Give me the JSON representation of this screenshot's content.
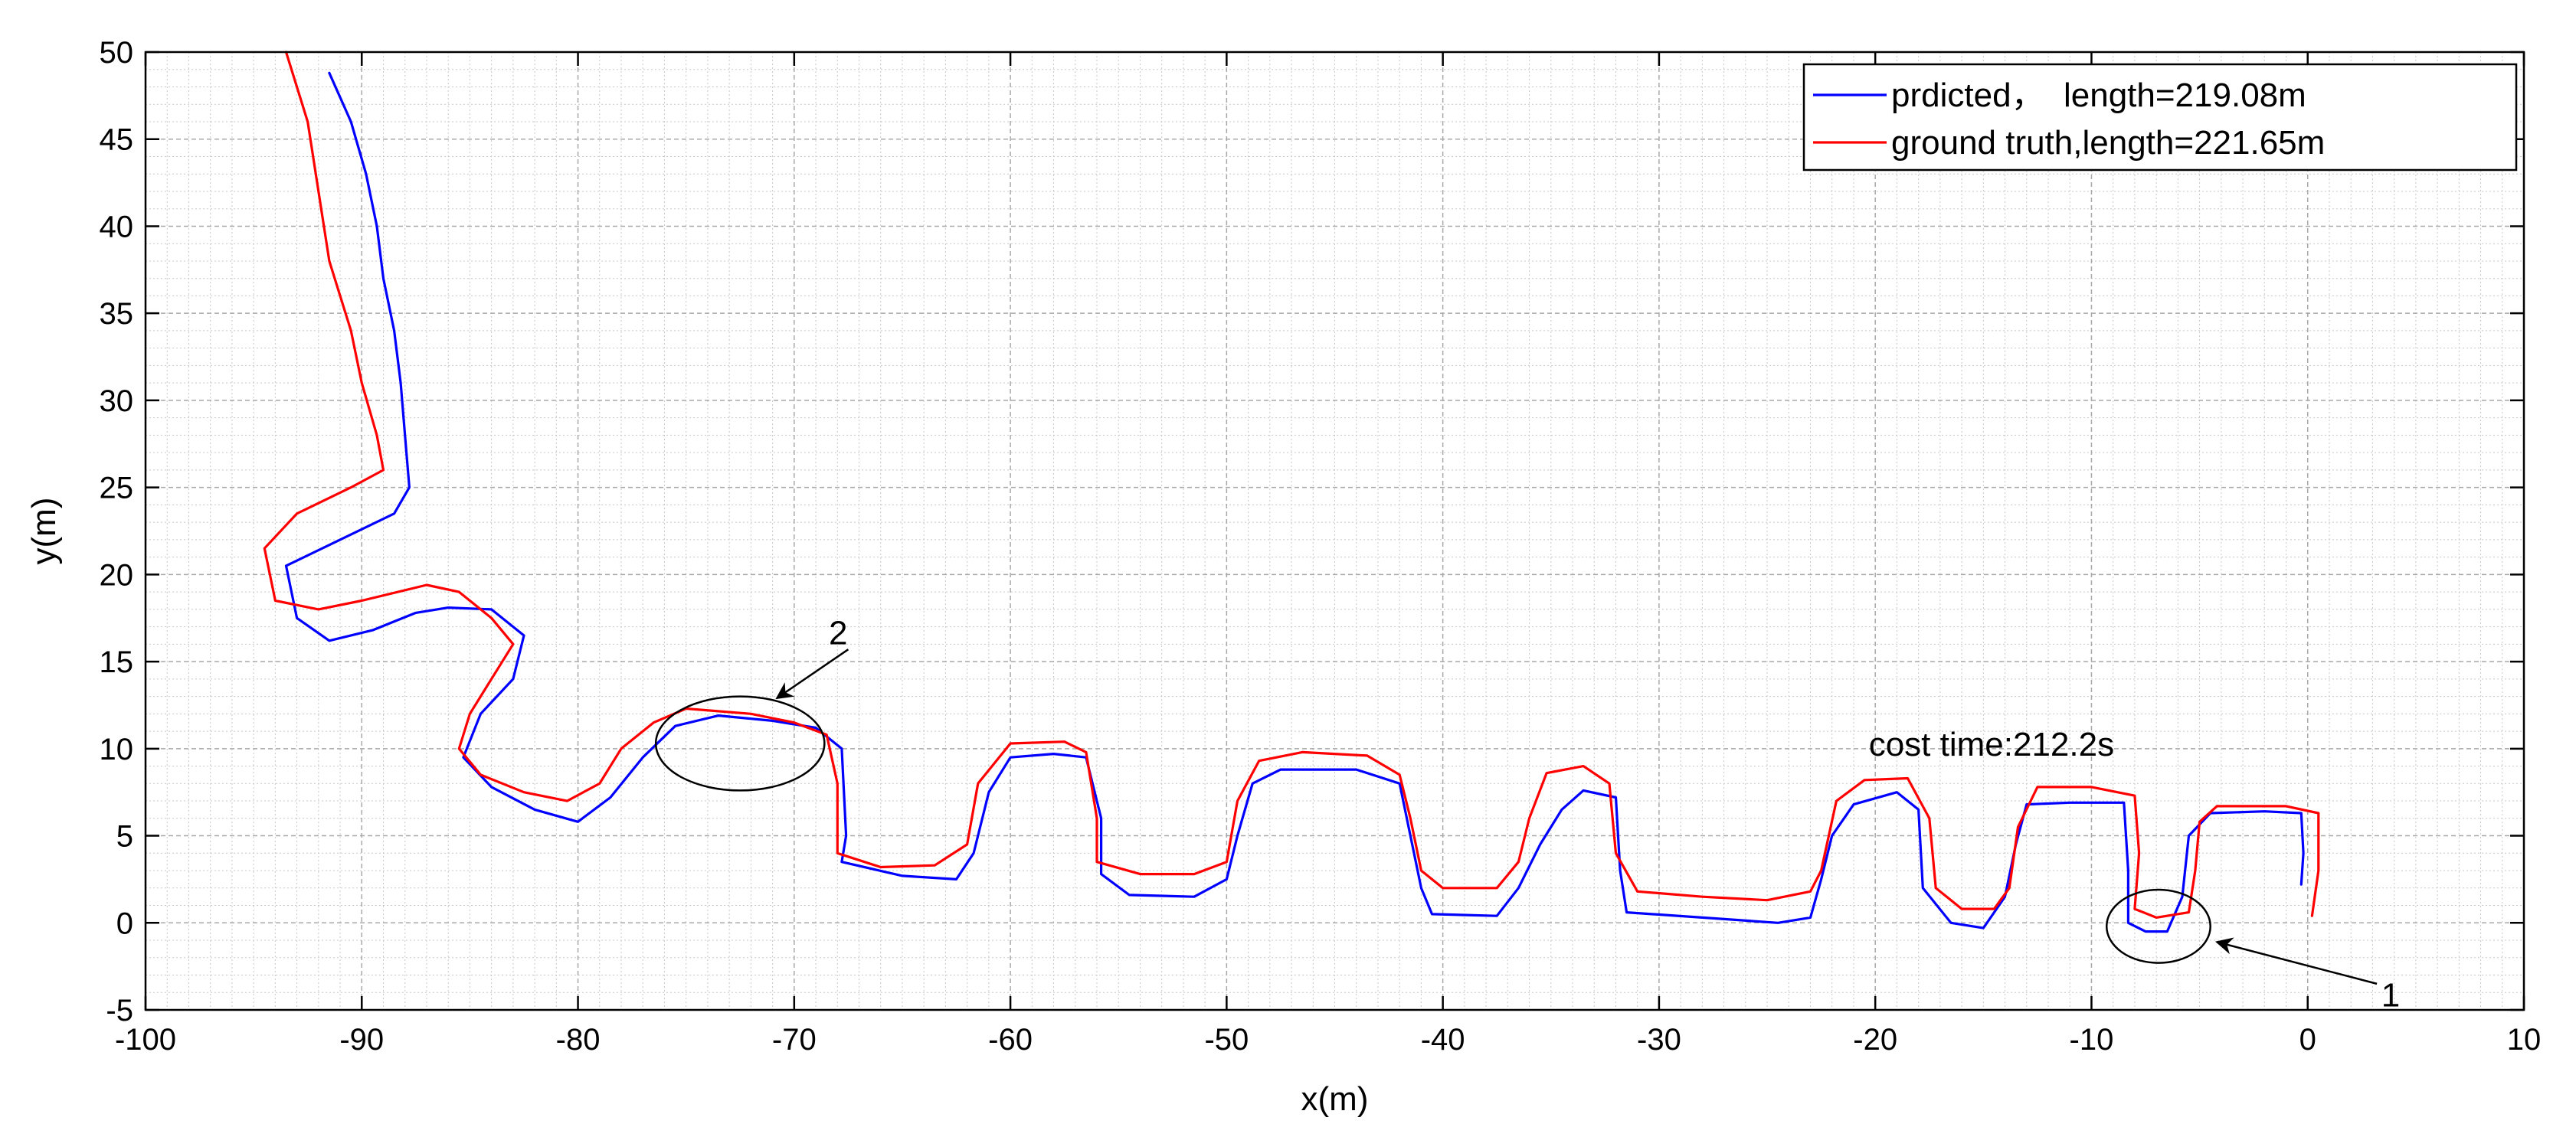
{
  "chart_data": {
    "type": "line",
    "xlabel": "x(m)",
    "ylabel": "y(m)",
    "xlim": [
      -100,
      10
    ],
    "ylim": [
      -5,
      50
    ],
    "xticks": [
      -100,
      -90,
      -80,
      -70,
      -60,
      -50,
      -40,
      -30,
      -20,
      -10,
      0,
      10
    ],
    "yticks": [
      -5,
      0,
      5,
      10,
      15,
      20,
      25,
      30,
      35,
      40,
      45,
      50
    ],
    "grid": true,
    "minor_grid": true,
    "legend_position": "top-right",
    "series": [
      {
        "name": "prdicted，  length=219.08m",
        "color": "#0000ff",
        "points": [
          [
            -91.5,
            48.8
          ],
          [
            -90.5,
            46
          ],
          [
            -89.8,
            43
          ],
          [
            -89.3,
            40
          ],
          [
            -89,
            37
          ],
          [
            -88.5,
            34
          ],
          [
            -88.2,
            31
          ],
          [
            -88,
            28
          ],
          [
            -87.8,
            25
          ],
          [
            -88.5,
            23.5
          ],
          [
            -91,
            22
          ],
          [
            -93.5,
            20.5
          ],
          [
            -93,
            17.5
          ],
          [
            -91.5,
            16.2
          ],
          [
            -89.5,
            16.8
          ],
          [
            -87.5,
            17.8
          ],
          [
            -86,
            18.1
          ],
          [
            -84,
            18
          ],
          [
            -82.5,
            16.5
          ],
          [
            -83,
            14
          ],
          [
            -84.5,
            12
          ],
          [
            -85.3,
            9.5
          ],
          [
            -84,
            7.8
          ],
          [
            -82,
            6.5
          ],
          [
            -80,
            5.8
          ],
          [
            -78.5,
            7.2
          ],
          [
            -77,
            9.5
          ],
          [
            -75.5,
            11.3
          ],
          [
            -73.5,
            11.9
          ],
          [
            -71,
            11.6
          ],
          [
            -69,
            11.2
          ],
          [
            -67.8,
            10
          ],
          [
            -67.6,
            5
          ],
          [
            -67.8,
            3.5
          ],
          [
            -65,
            2.7
          ],
          [
            -62.5,
            2.5
          ],
          [
            -61.7,
            4
          ],
          [
            -61,
            7.5
          ],
          [
            -60,
            9.5
          ],
          [
            -58,
            9.7
          ],
          [
            -56.5,
            9.5
          ],
          [
            -55.8,
            6
          ],
          [
            -55.8,
            2.8
          ],
          [
            -54.5,
            1.6
          ],
          [
            -51.5,
            1.5
          ],
          [
            -50,
            2.5
          ],
          [
            -49.5,
            5
          ],
          [
            -48.8,
            8
          ],
          [
            -47.5,
            8.8
          ],
          [
            -44,
            8.8
          ],
          [
            -42,
            8
          ],
          [
            -41.5,
            5
          ],
          [
            -41,
            2
          ],
          [
            -40.5,
            0.5
          ],
          [
            -37.5,
            0.4
          ],
          [
            -36.5,
            2
          ],
          [
            -35.5,
            4.5
          ],
          [
            -34.5,
            6.5
          ],
          [
            -33.5,
            7.6
          ],
          [
            -32,
            7.2
          ],
          [
            -31.8,
            3
          ],
          [
            -31.5,
            0.6
          ],
          [
            -28,
            0.3
          ],
          [
            -24.5,
            0
          ],
          [
            -23,
            0.3
          ],
          [
            -22.5,
            2.5
          ],
          [
            -22,
            5
          ],
          [
            -21,
            6.8
          ],
          [
            -19,
            7.5
          ],
          [
            -18,
            6.5
          ],
          [
            -17.8,
            2
          ],
          [
            -16.5,
            0
          ],
          [
            -15,
            -0.3
          ],
          [
            -14,
            1.5
          ],
          [
            -13.5,
            4.5
          ],
          [
            -13,
            6.8
          ],
          [
            -11,
            6.9
          ],
          [
            -8.5,
            6.9
          ],
          [
            -8.3,
            3
          ],
          [
            -8.3,
            0
          ],
          [
            -7.5,
            -0.5
          ],
          [
            -6.5,
            -0.5
          ],
          [
            -5.8,
            1.5
          ],
          [
            -5.5,
            5
          ],
          [
            -4.5,
            6.3
          ],
          [
            -2,
            6.4
          ],
          [
            -0.3,
            6.3
          ],
          [
            -0.2,
            4
          ],
          [
            -0.3,
            2.2
          ]
        ]
      },
      {
        "name": "ground truth,length=221.65m",
        "color": "#ff0000",
        "points": [
          [
            -93.5,
            50
          ],
          [
            -92.5,
            46
          ],
          [
            -92,
            42
          ],
          [
            -91.5,
            38
          ],
          [
            -90.5,
            34
          ],
          [
            -90,
            31
          ],
          [
            -89.3,
            28
          ],
          [
            -89,
            26
          ],
          [
            -90.5,
            25
          ],
          [
            -93,
            23.5
          ],
          [
            -94.5,
            21.5
          ],
          [
            -94,
            18.5
          ],
          [
            -92,
            18
          ],
          [
            -90,
            18.5
          ],
          [
            -87,
            19.4
          ],
          [
            -85.5,
            19
          ],
          [
            -84,
            17.5
          ],
          [
            -83,
            16
          ],
          [
            -84,
            14
          ],
          [
            -85,
            12
          ],
          [
            -85.5,
            10
          ],
          [
            -84.5,
            8.5
          ],
          [
            -82.5,
            7.5
          ],
          [
            -80.5,
            7
          ],
          [
            -79,
            8
          ],
          [
            -78,
            10
          ],
          [
            -76.5,
            11.5
          ],
          [
            -75,
            12.3
          ],
          [
            -72,
            12
          ],
          [
            -70,
            11.5
          ],
          [
            -68.5,
            10.8
          ],
          [
            -68,
            8
          ],
          [
            -68,
            4
          ],
          [
            -66,
            3.2
          ],
          [
            -63.5,
            3.3
          ],
          [
            -62,
            4.5
          ],
          [
            -61.5,
            8
          ],
          [
            -60,
            10.3
          ],
          [
            -57.5,
            10.4
          ],
          [
            -56.5,
            9.8
          ],
          [
            -56,
            6
          ],
          [
            -56,
            3.5
          ],
          [
            -54,
            2.8
          ],
          [
            -51.5,
            2.8
          ],
          [
            -50,
            3.5
          ],
          [
            -49.5,
            7
          ],
          [
            -48.5,
            9.3
          ],
          [
            -46.5,
            9.8
          ],
          [
            -43.5,
            9.6
          ],
          [
            -42,
            8.5
          ],
          [
            -41.5,
            6
          ],
          [
            -41,
            3
          ],
          [
            -40,
            2
          ],
          [
            -37.5,
            2
          ],
          [
            -36.5,
            3.5
          ],
          [
            -36,
            6
          ],
          [
            -35.2,
            8.6
          ],
          [
            -33.5,
            9
          ],
          [
            -32.3,
            8
          ],
          [
            -32,
            4
          ],
          [
            -31,
            1.8
          ],
          [
            -28,
            1.5
          ],
          [
            -25,
            1.3
          ],
          [
            -23,
            1.8
          ],
          [
            -22.5,
            3
          ],
          [
            -21.8,
            7
          ],
          [
            -20.5,
            8.2
          ],
          [
            -18.5,
            8.3
          ],
          [
            -17.5,
            6
          ],
          [
            -17.2,
            2
          ],
          [
            -16,
            0.8
          ],
          [
            -14.5,
            0.8
          ],
          [
            -13.8,
            2
          ],
          [
            -13.4,
            5.5
          ],
          [
            -12.5,
            7.8
          ],
          [
            -10,
            7.8
          ],
          [
            -8,
            7.3
          ],
          [
            -7.8,
            4
          ],
          [
            -8,
            0.8
          ],
          [
            -7,
            0.3
          ],
          [
            -5.5,
            0.6
          ],
          [
            -5.2,
            3
          ],
          [
            -5,
            5.8
          ],
          [
            -4.2,
            6.7
          ],
          [
            -1,
            6.7
          ],
          [
            0.5,
            6.3
          ],
          [
            0.5,
            3
          ],
          [
            0.2,
            0.4
          ]
        ]
      }
    ],
    "annotations": [
      {
        "label": "2",
        "ellipse": {
          "cx": -72.5,
          "cy": 10.3,
          "rx": 3.9,
          "ry": 2.7
        },
        "arrow_from": [
          -67.5,
          15.7
        ],
        "arrow_to": [
          -70.8,
          12.9
        ],
        "text_at": [
          -68.4,
          16
        ]
      },
      {
        "label": "1",
        "ellipse": {
          "cx": -6.9,
          "cy": -0.2,
          "rx": 2.4,
          "ry": 2.1
        },
        "arrow_from": [
          3.2,
          -3.5
        ],
        "arrow_to": [
          -4.2,
          -1.1
        ],
        "text_at": [
          3.4,
          -4.8
        ]
      },
      {
        "label": "cost time:212.2s",
        "text_at": [
          -20.3,
          9.6
        ]
      }
    ]
  }
}
